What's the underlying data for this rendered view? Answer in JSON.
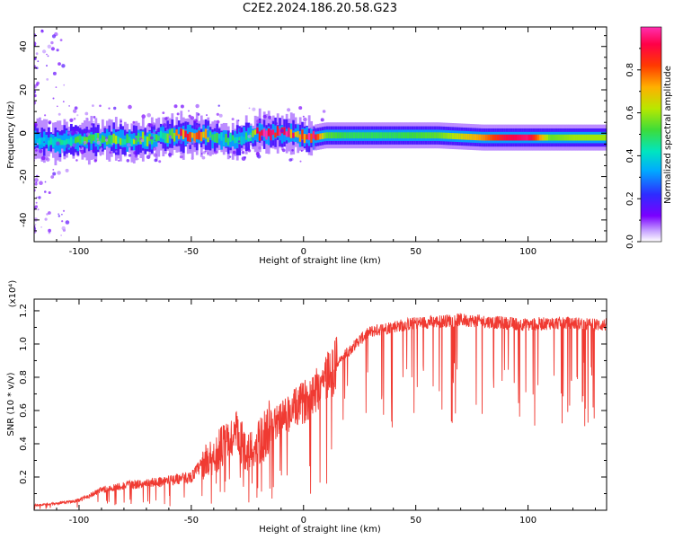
{
  "title": "C2E2.2024.186.20.58.G23",
  "colors": {
    "snr_line": "#f03a32",
    "spectrogram_background": "#ffffff",
    "colormap": [
      "#ffffff",
      "#c7a3ff",
      "#7a00ff",
      "#2e2cff",
      "#00aaff",
      "#00e5c0",
      "#3ddc3a",
      "#b8e800",
      "#ffb000",
      "#ff3a00",
      "#ff0048",
      "#ff2fb0"
    ]
  },
  "chart_data": [
    {
      "type": "heatmap",
      "title": "C2E2.2024.186.20.58.G23",
      "xlabel": "Height of straight line (km)",
      "ylabel": "Frequency (Hz)",
      "xlim": [
        -120,
        135
      ],
      "ylim": [
        -50,
        49
      ],
      "xticks": [
        -100,
        -50,
        0,
        50,
        100
      ],
      "yticks": [
        -40,
        -20,
        0,
        20,
        40
      ],
      "grid": false,
      "colorbar": {
        "label": "Normalized spectral amplitude",
        "range": [
          0,
          1
        ],
        "ticks": [
          "0.0",
          "0.2",
          "0.4",
          "0.6",
          "0.8"
        ]
      },
      "ridge": {
        "description_units": "frequency center (Hz) and peak normalized amplitude vs height (km)",
        "height": [
          -120,
          -110,
          -100,
          -90,
          -80,
          -70,
          -60,
          -55,
          -50,
          -45,
          -40,
          -35,
          -30,
          -25,
          -20,
          -15,
          -10,
          -5,
          0,
          5,
          10,
          20,
          40,
          60,
          80,
          90,
          100,
          110,
          120,
          135
        ],
        "freq": [
          -3,
          -4,
          -3,
          -3,
          -3,
          -3,
          -1,
          -1,
          -1,
          -1,
          -2,
          -3,
          -3,
          -2,
          0,
          0,
          0,
          0,
          -2,
          -2,
          -1,
          -1,
          -1,
          -1,
          -2,
          -2,
          -2,
          -2,
          -2,
          -2
        ],
        "amplitude": [
          0.35,
          0.45,
          0.5,
          0.55,
          0.6,
          0.55,
          0.6,
          0.85,
          0.8,
          0.75,
          0.6,
          0.5,
          0.45,
          0.5,
          0.95,
          0.98,
          0.98,
          0.9,
          0.95,
          0.9,
          0.55,
          0.5,
          0.5,
          0.55,
          0.75,
          0.9,
          0.95,
          0.55,
          0.6,
          0.6
        ]
      }
    },
    {
      "type": "line",
      "xlabel": "Height of straight line (km)",
      "ylabel": "SNR (10 * v/v)",
      "y_multiplier_label": "(x10⁴)",
      "xlim": [
        -120,
        135
      ],
      "ylim": [
        0,
        1.27
      ],
      "xticks": [
        -100,
        -50,
        0,
        50,
        100
      ],
      "yticks": [
        0.2,
        0.4,
        0.6,
        0.8,
        1.0,
        1.2
      ],
      "ytick_labels": [
        "0.2",
        "0.4",
        "0.6",
        "0.8",
        "1.0",
        "1.2"
      ],
      "grid": false,
      "series": [
        {
          "x": [
            -120,
            -110,
            -100,
            -90,
            -80,
            -70,
            -60,
            -50,
            -45,
            -40,
            -35,
            -30,
            -25,
            -20,
            -15,
            -10,
            -5,
            0,
            5,
            10,
            15,
            20,
            25,
            30,
            40,
            50,
            60,
            70,
            80,
            90,
            100,
            110,
            120,
            130,
            135
          ],
          "y": [
            0.03,
            0.04,
            0.06,
            0.12,
            0.15,
            0.16,
            0.18,
            0.2,
            0.28,
            0.33,
            0.4,
            0.45,
            0.35,
            0.4,
            0.5,
            0.55,
            0.6,
            0.65,
            0.72,
            0.8,
            0.88,
            0.95,
            1.02,
            1.07,
            1.1,
            1.12,
            1.13,
            1.14,
            1.13,
            1.12,
            1.11,
            1.12,
            1.12,
            1.11,
            1.11
          ]
        }
      ]
    }
  ]
}
